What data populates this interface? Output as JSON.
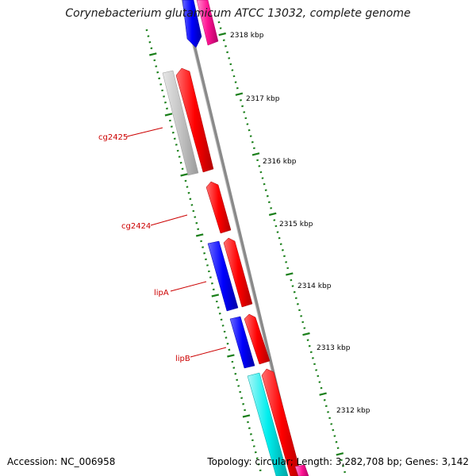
{
  "title": "Corynebacterium glutamicum ATCC 13032, complete genome",
  "footer": {
    "accession": "Accession: NC_006958",
    "summary": "Topology: circular; Length: 3,282,708 bp; Genes: 3,142"
  },
  "colors": {
    "forward_strand": "#ff0000",
    "reverse_strand": "#0000ff",
    "pseudo": "#c0c0c0",
    "rna": "#00e5ee",
    "misc": "#ff1493",
    "backbone": "#888888",
    "ticks": "#1a7f1a",
    "label": "#cc0000"
  },
  "ticks": [
    "2318 kbp",
    "2317 kbp",
    "2316 kbp",
    "2315 kbp",
    "2314 kbp",
    "2313 kbp",
    "2312 kbp"
  ],
  "gene_labels": [
    "cg2425",
    "cg2424",
    "lipA",
    "lipB"
  ]
}
